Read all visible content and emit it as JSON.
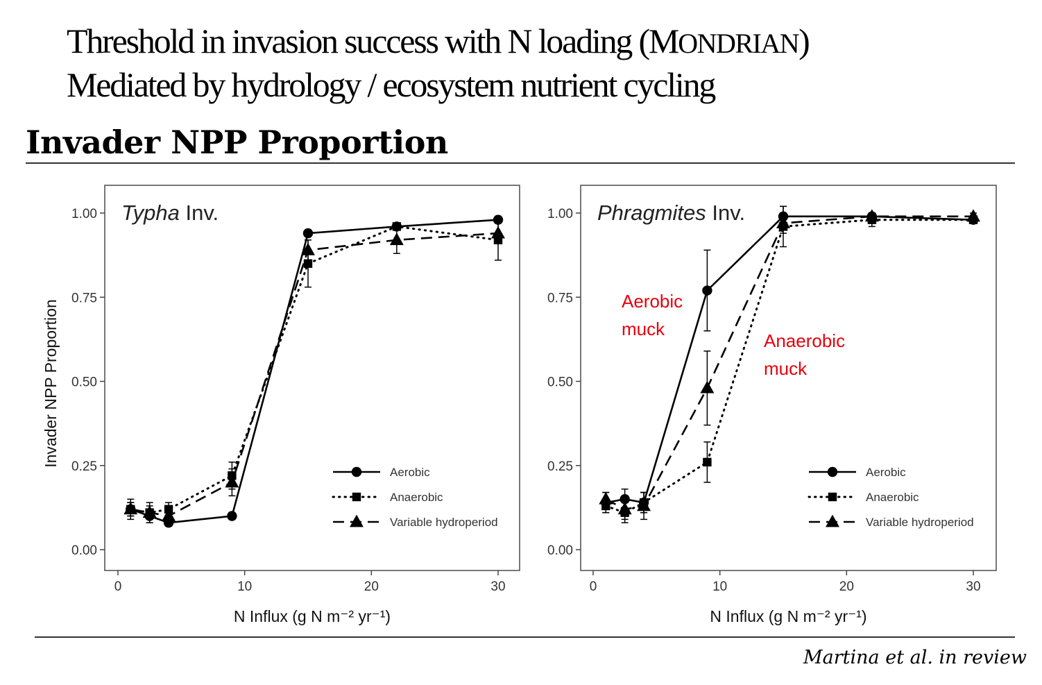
{
  "header": {
    "title_line1_main": "Threshold in invasion success with N loading (M",
    "title_line1_smallcaps": "ONDRIAN",
    "title_line1_end": ")",
    "title_line2": "Mediated by hydrology / ecosystem nutrient cycling",
    "subtitle": "Invader NPP Proportion"
  },
  "citation": "Martina et al. in review",
  "annotations": {
    "aerobic_muck": [
      "Aerobic",
      "muck"
    ],
    "anaerobic_muck": [
      "Anaerobic",
      "muck"
    ],
    "color": "#e8000b"
  },
  "chart_data": [
    {
      "type": "line",
      "panel_label_italic": "Typha",
      "panel_label_rest": " Inv.",
      "ylabel": "Invader NPP Proportion",
      "xlabel": "N Influx (g N m⁻² yr⁻¹)",
      "xlim": [
        0,
        32
      ],
      "ylim": [
        -0.03,
        1.05
      ],
      "xticks": [
        0,
        10,
        20,
        30
      ],
      "yticks": [
        "0.00",
        "0.25",
        "0.50",
        "0.75",
        "1.00"
      ],
      "x": [
        1,
        2.5,
        4,
        9,
        15,
        22,
        30
      ],
      "legend_position": "bottom-right",
      "series": [
        {
          "name": "Aerobic",
          "marker": "circle",
          "line": "solid",
          "values": [
            0.12,
            0.1,
            0.08,
            0.1,
            0.94,
            0.96,
            0.98
          ],
          "err": [
            0.02,
            0.02,
            0.01,
            0.01,
            0.01,
            0.01,
            0.01
          ]
        },
        {
          "name": "Anaerobic",
          "marker": "square",
          "line": "dotted",
          "values": [
            0.12,
            0.11,
            0.12,
            0.22,
            0.85,
            0.96,
            0.92
          ],
          "err": [
            0.03,
            0.03,
            0.02,
            0.04,
            0.07,
            0.01,
            0.06
          ]
        },
        {
          "name": "Variable hydroperiod",
          "marker": "triangle",
          "line": "dashed",
          "values": [
            0.12,
            0.11,
            0.1,
            0.2,
            0.89,
            0.92,
            0.94
          ],
          "err": [
            0.02,
            0.02,
            0.02,
            0.04,
            0.03,
            0.04,
            0.03
          ]
        }
      ]
    },
    {
      "type": "line",
      "panel_label_italic": "Phragmites",
      "panel_label_rest": " Inv.",
      "ylabel": "",
      "xlabel": "N Influx (g N m⁻² yr⁻¹)",
      "xlim": [
        0,
        32
      ],
      "ylim": [
        -0.03,
        1.05
      ],
      "xticks": [
        0,
        10,
        20,
        30
      ],
      "yticks": [
        "0.00",
        "0.25",
        "0.50",
        "0.75",
        "1.00"
      ],
      "x": [
        1,
        2.5,
        4,
        9,
        15,
        22,
        30
      ],
      "legend_position": "bottom-right",
      "series": [
        {
          "name": "Aerobic",
          "marker": "circle",
          "line": "solid",
          "values": [
            0.14,
            0.15,
            0.14,
            0.77,
            0.99,
            0.99,
            0.98
          ],
          "err": [
            0.03,
            0.03,
            0.03,
            0.12,
            0.03,
            0.01,
            0.01
          ]
        },
        {
          "name": "Anaerobic",
          "marker": "square",
          "line": "dotted",
          "values": [
            0.13,
            0.11,
            0.14,
            0.26,
            0.96,
            0.98,
            0.98
          ],
          "err": [
            0.02,
            0.03,
            0.03,
            0.06,
            0.06,
            0.02,
            0.01
          ]
        },
        {
          "name": "Variable hydroperiod",
          "marker": "triangle",
          "line": "dashed",
          "values": [
            0.15,
            0.12,
            0.13,
            0.48,
            0.97,
            0.99,
            0.99
          ],
          "err": [
            0.02,
            0.03,
            0.04,
            0.11,
            0.03,
            0.01,
            0.01
          ]
        }
      ]
    }
  ]
}
